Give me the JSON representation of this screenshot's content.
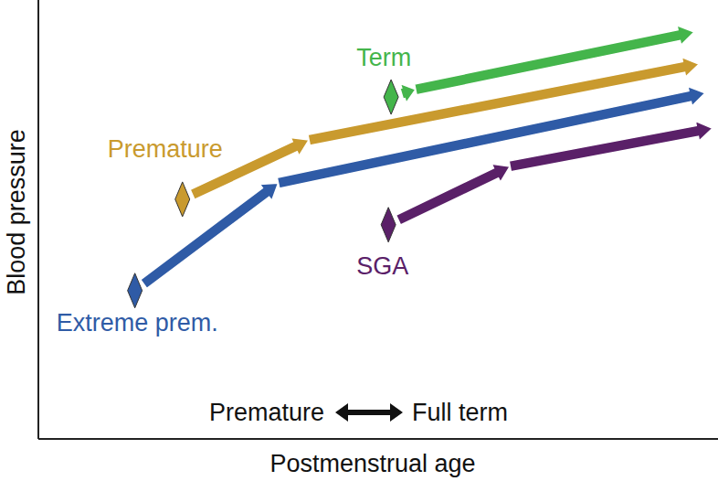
{
  "chart_data": {
    "type": "line",
    "x_label": "Postmenstrual age",
    "y_label": "Blood pressure",
    "annotations": [
      "Premature",
      "Full term"
    ],
    "xlim": [
      0,
      100
    ],
    "ylim": [
      0,
      100
    ],
    "tick_labels": false,
    "grid": false,
    "marker": "diamond",
    "line_style": "arrow",
    "series": [
      {
        "name": "Extreme prem.",
        "color": "#2f5ba6",
        "x": [
          14.2,
          35.3,
          98.1
        ],
        "values": [
          33.8,
          58.3,
          78.8
        ]
      },
      {
        "name": "Premature",
        "color": "#c99a2e",
        "x": [
          21.2,
          39.8,
          97.2
        ],
        "values": [
          54.6,
          68.1,
          85.4
        ]
      },
      {
        "name": "Term",
        "color": "#44b54b",
        "x": [
          51.9,
          55.5,
          96.5
        ],
        "values": [
          77.9,
          79.6,
          92.7
        ]
      },
      {
        "name": "SGA",
        "color": "#5a2068",
        "x": [
          51.5,
          69.4,
          99.2
        ],
        "values": [
          48.8,
          62.1,
          70.8
        ]
      }
    ]
  }
}
